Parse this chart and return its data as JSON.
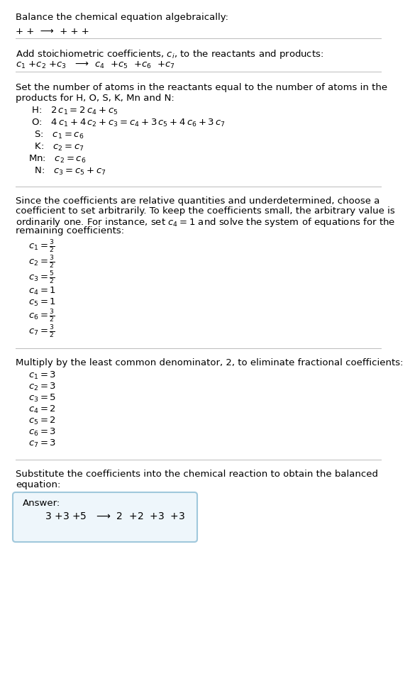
{
  "bg_color": "#ffffff",
  "text_color": "#000000",
  "title": "Balance the chemical equation algebraically:",
  "section1_line1": "+ +  ⟶  + + +",
  "section2_header": "Add stoichiometric coefficients, $c_i$, to the reactants and products:",
  "section2_eq": "$c_1$ +$c_2$ +$c_3$   ⟶  $c_4$  +$c_5$  +$c_6$  +$c_7$",
  "section3_header": "Set the number of atoms in the reactants equal to the number of atoms in the\nproducts for H, O, S, K, Mn and N:",
  "section3_eqs": [
    " H:   $2\\,c_1 = 2\\,c_4 + c_5$",
    " O:   $4\\,c_1 + 4\\,c_2 + c_3 = c_4 + 3\\,c_5 + 4\\,c_6 + 3\\,c_7$",
    "  S:   $c_1 = c_6$",
    "  K:   $c_2 = c_7$",
    "Mn:   $c_2 = c_6$",
    "  N:   $c_3 = c_5 + c_7$"
  ],
  "section4_header": "Since the coefficients are relative quantities and underdetermined, choose a\ncoefficient to set arbitrarily. To keep the coefficients small, the arbitrary value is\nordinarily one. For instance, set $c_4 = 1$ and solve the system of equations for the\nremaining coefficients:",
  "section4_eqs": [
    "$c_1 = \\frac{3}{2}$",
    "$c_2 = \\frac{3}{2}$",
    "$c_3 = \\frac{5}{2}$",
    "$c_4 = 1$",
    "$c_5 = 1$",
    "$c_6 = \\frac{3}{2}$",
    "$c_7 = \\frac{3}{2}$"
  ],
  "section5_header": "Multiply by the least common denominator, 2, to eliminate fractional coefficients:",
  "section5_eqs": [
    "$c_1 = 3$",
    "$c_2 = 3$",
    "$c_3 = 5$",
    "$c_4 = 2$",
    "$c_5 = 2$",
    "$c_6 = 3$",
    "$c_7 = 3$"
  ],
  "section6_header": "Substitute the coefficients into the chemical reaction to obtain the balanced\nequation:",
  "answer_label": "Answer:",
  "answer_eq": "   $3$ +$3$ +$5$   ⟶  $2$  +$2$  +$3$  +$3$",
  "answer_box_color": "#a0c8dc",
  "answer_box_fill": "#eef6fb",
  "divider_color": "#bbbbbb",
  "fs": 9.5
}
